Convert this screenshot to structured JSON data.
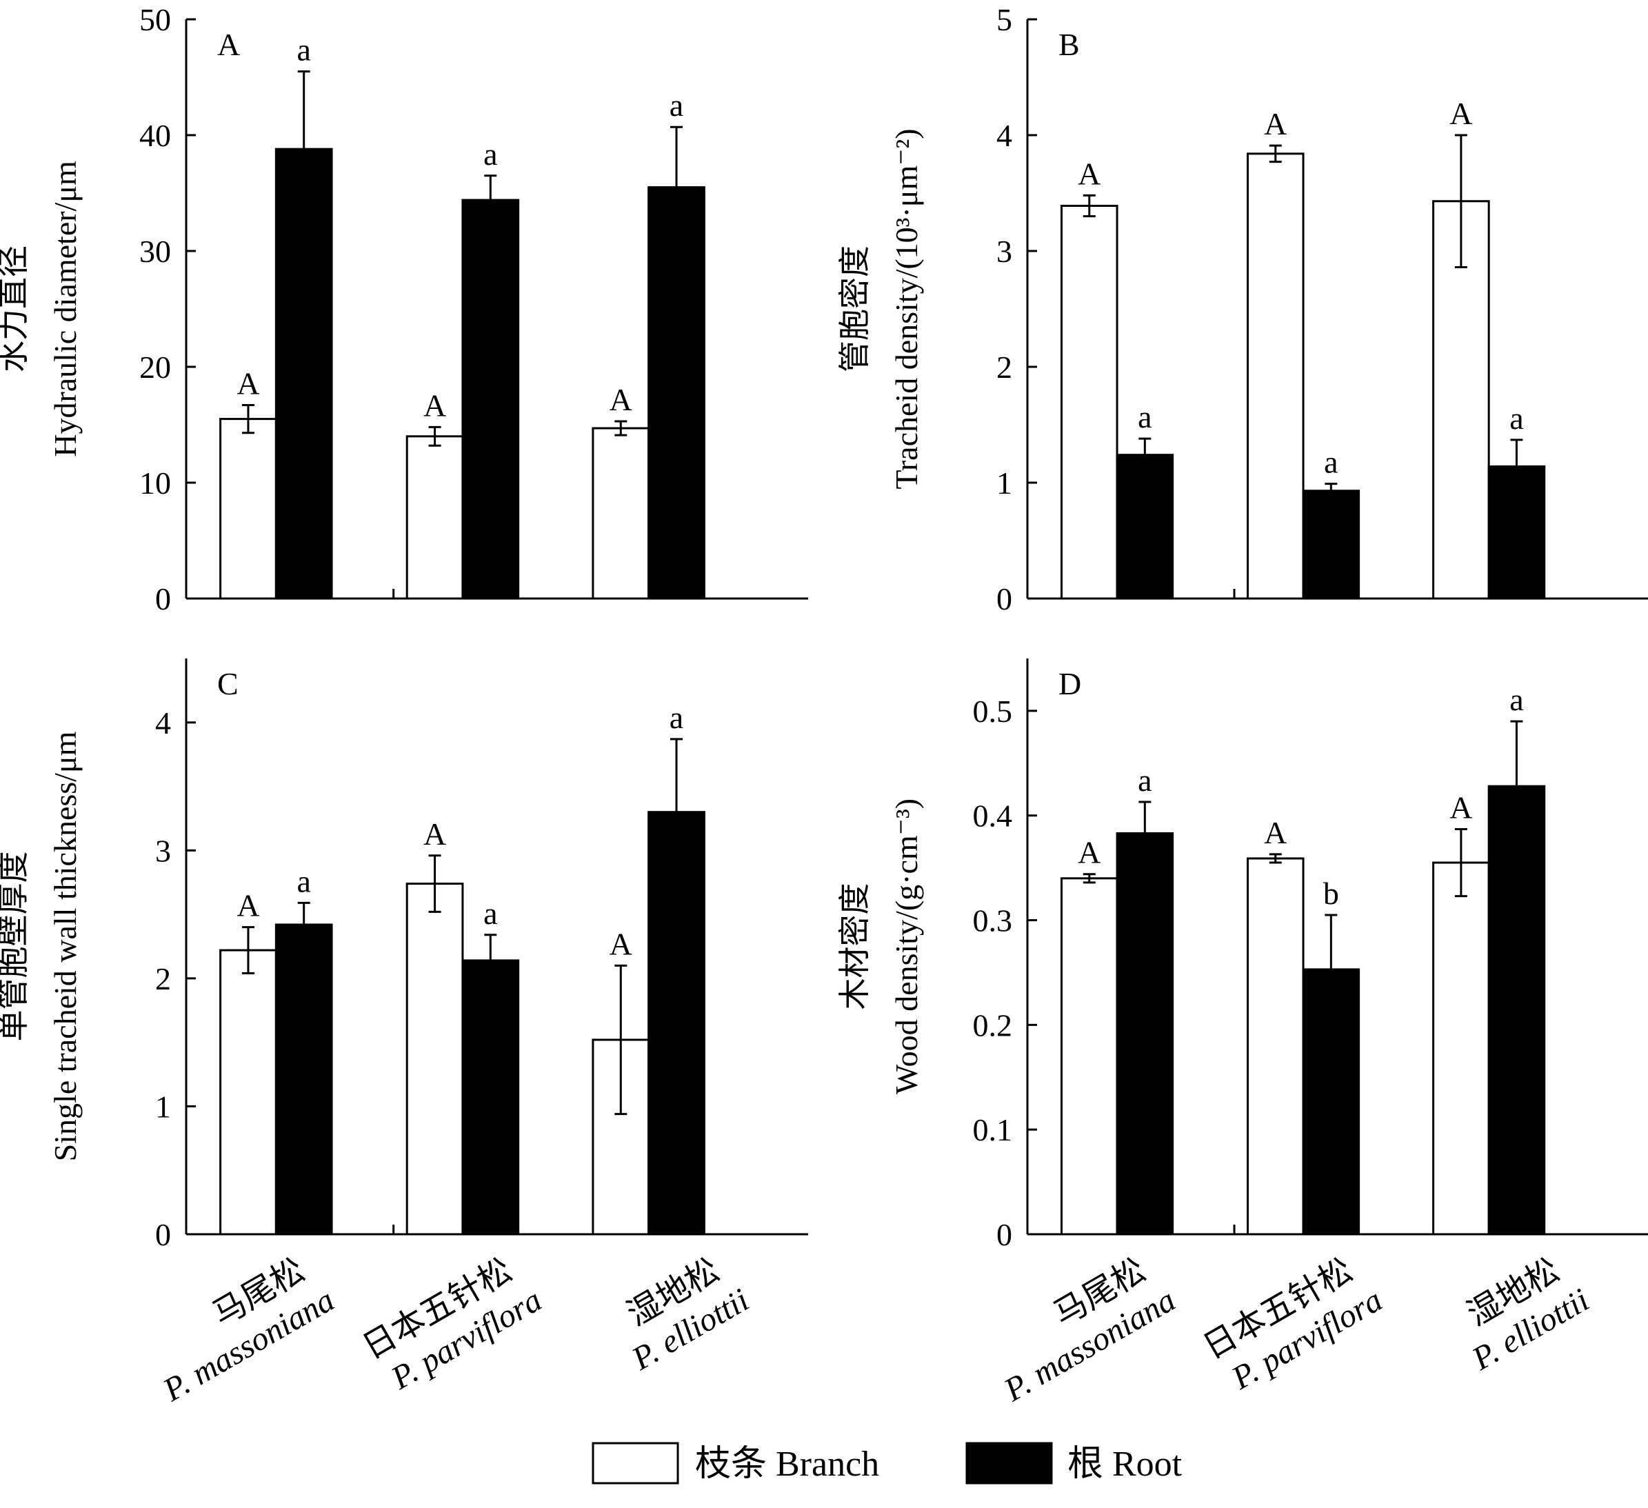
{
  "legend": {
    "branch_label": "枝条 Branch",
    "root_label": "根 Root",
    "branch_fill": "#ffffff",
    "root_fill": "#000000"
  },
  "categories": [
    {
      "zh": "马尾松",
      "latin": "P. massoniana"
    },
    {
      "zh": "日本五针松",
      "latin": "P. parviflora"
    },
    {
      "zh": "湿地松",
      "latin": "P. elliottii"
    }
  ],
  "chart_data": [
    {
      "panel": "A",
      "type": "bar",
      "ylabel_zh": "水力直径",
      "ylabel_en": "Hydraulic diameter/μm",
      "ylim": [
        0,
        50
      ],
      "yticks": [
        0,
        10,
        20,
        30,
        40,
        50
      ],
      "series": [
        {
          "name": "枝条 Branch",
          "values": [
            15.5,
            14.0,
            14.7
          ],
          "errors": [
            1.2,
            0.8,
            0.6
          ],
          "letters": [
            "A",
            "A",
            "A"
          ]
        },
        {
          "name": "根 Root",
          "values": [
            38.8,
            34.4,
            35.5
          ],
          "errors": [
            6.7,
            2.1,
            5.2
          ],
          "letters": [
            "a",
            "a",
            "a"
          ]
        }
      ]
    },
    {
      "panel": "B",
      "type": "bar",
      "ylabel_zh": "管胞密度",
      "ylabel_en": "Tracheid density/(10³·μm⁻²)",
      "ylim": [
        0,
        5
      ],
      "yticks": [
        0,
        1,
        2,
        3,
        4,
        5
      ],
      "series": [
        {
          "name": "枝条 Branch",
          "values": [
            3.39,
            3.84,
            3.43
          ],
          "errors": [
            0.09,
            0.07,
            0.57
          ],
          "letters": [
            "A",
            "A",
            "A"
          ]
        },
        {
          "name": "根 Root",
          "values": [
            1.24,
            0.93,
            1.14
          ],
          "errors": [
            0.14,
            0.06,
            0.23
          ],
          "letters": [
            "a",
            "a",
            "a"
          ]
        }
      ]
    },
    {
      "panel": "C",
      "type": "bar",
      "ylabel_zh": "单管胞壁厚度",
      "ylabel_en": "Single tracheid wall thickness/μm",
      "ylim": [
        0,
        4.5
      ],
      "yticks": [
        0,
        1,
        2,
        3,
        4
      ],
      "series": [
        {
          "name": "枝条 Branch",
          "values": [
            2.22,
            2.74,
            1.52
          ],
          "errors": [
            0.18,
            0.22,
            0.58
          ],
          "letters": [
            "A",
            "A",
            "A"
          ]
        },
        {
          "name": "根 Root",
          "values": [
            2.42,
            2.14,
            3.3
          ],
          "errors": [
            0.17,
            0.2,
            0.57
          ],
          "letters": [
            "a",
            "a",
            "a"
          ]
        }
      ]
    },
    {
      "panel": "D",
      "type": "bar",
      "ylabel_zh": "木材密度",
      "ylabel_en": "Wood density/(g·cm⁻³)",
      "ylim": [
        0,
        0.55
      ],
      "yticks": [
        0,
        0.1,
        0.2,
        0.3,
        0.4,
        0.5
      ],
      "series": [
        {
          "name": "枝条 Branch",
          "values": [
            0.34,
            0.359,
            0.355
          ],
          "errors": [
            0.004,
            0.004,
            0.032
          ],
          "letters": [
            "A",
            "A",
            "A"
          ]
        },
        {
          "name": "根 Root",
          "values": [
            0.383,
            0.253,
            0.428
          ],
          "errors": [
            0.03,
            0.052,
            0.062
          ],
          "letters": [
            "a",
            "b",
            "a"
          ]
        }
      ]
    }
  ]
}
